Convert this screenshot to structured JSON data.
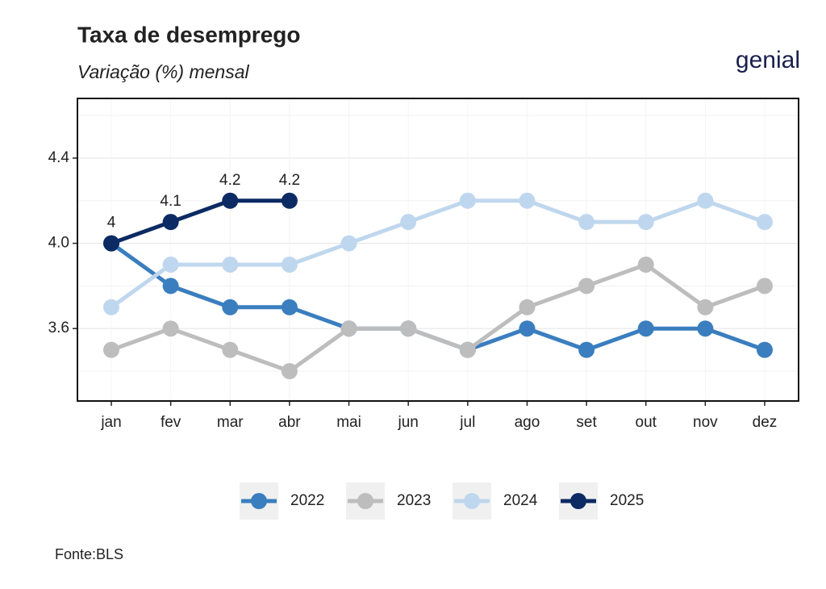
{
  "chart_data": {
    "type": "line",
    "title": "Taxa de desemprego",
    "subtitle": "Variação (%) mensal",
    "logo": "genial",
    "source": "Fonte:BLS",
    "categories": [
      "jan",
      "fev",
      "mar",
      "abr",
      "mai",
      "jun",
      "jul",
      "ago",
      "set",
      "out",
      "nov",
      "dez"
    ],
    "series": [
      {
        "name": "2022",
        "color": "#3a7ebf",
        "values": [
          4.0,
          3.8,
          3.7,
          3.7,
          3.6,
          3.6,
          3.5,
          3.6,
          3.5,
          3.6,
          3.6,
          3.5
        ]
      },
      {
        "name": "2023",
        "color": "#bdbdbd",
        "values": [
          3.5,
          3.6,
          3.5,
          3.4,
          3.6,
          3.6,
          3.5,
          3.7,
          3.8,
          3.9,
          3.7,
          3.8
        ]
      },
      {
        "name": "2024",
        "color": "#bfd7ee",
        "values": [
          3.7,
          3.9,
          3.9,
          3.9,
          4.0,
          4.1,
          4.2,
          4.2,
          4.1,
          4.1,
          4.2,
          4.1
        ]
      },
      {
        "name": "2025",
        "color": "#0c2a63",
        "values": [
          4,
          4.1,
          4.2,
          4.2,
          null,
          null,
          null,
          null,
          null,
          null,
          null,
          null
        ],
        "data_labels": true
      }
    ],
    "ylim": [
      3.26,
      4.68
    ],
    "yticks": [
      3.6,
      {
        "value": 4,
        "label": "4.0"
      },
      4.4
    ],
    "minor_grid": [
      3.4,
      3.8,
      4.2,
      4.6
    ],
    "grid": true,
    "legend": "bottom"
  }
}
